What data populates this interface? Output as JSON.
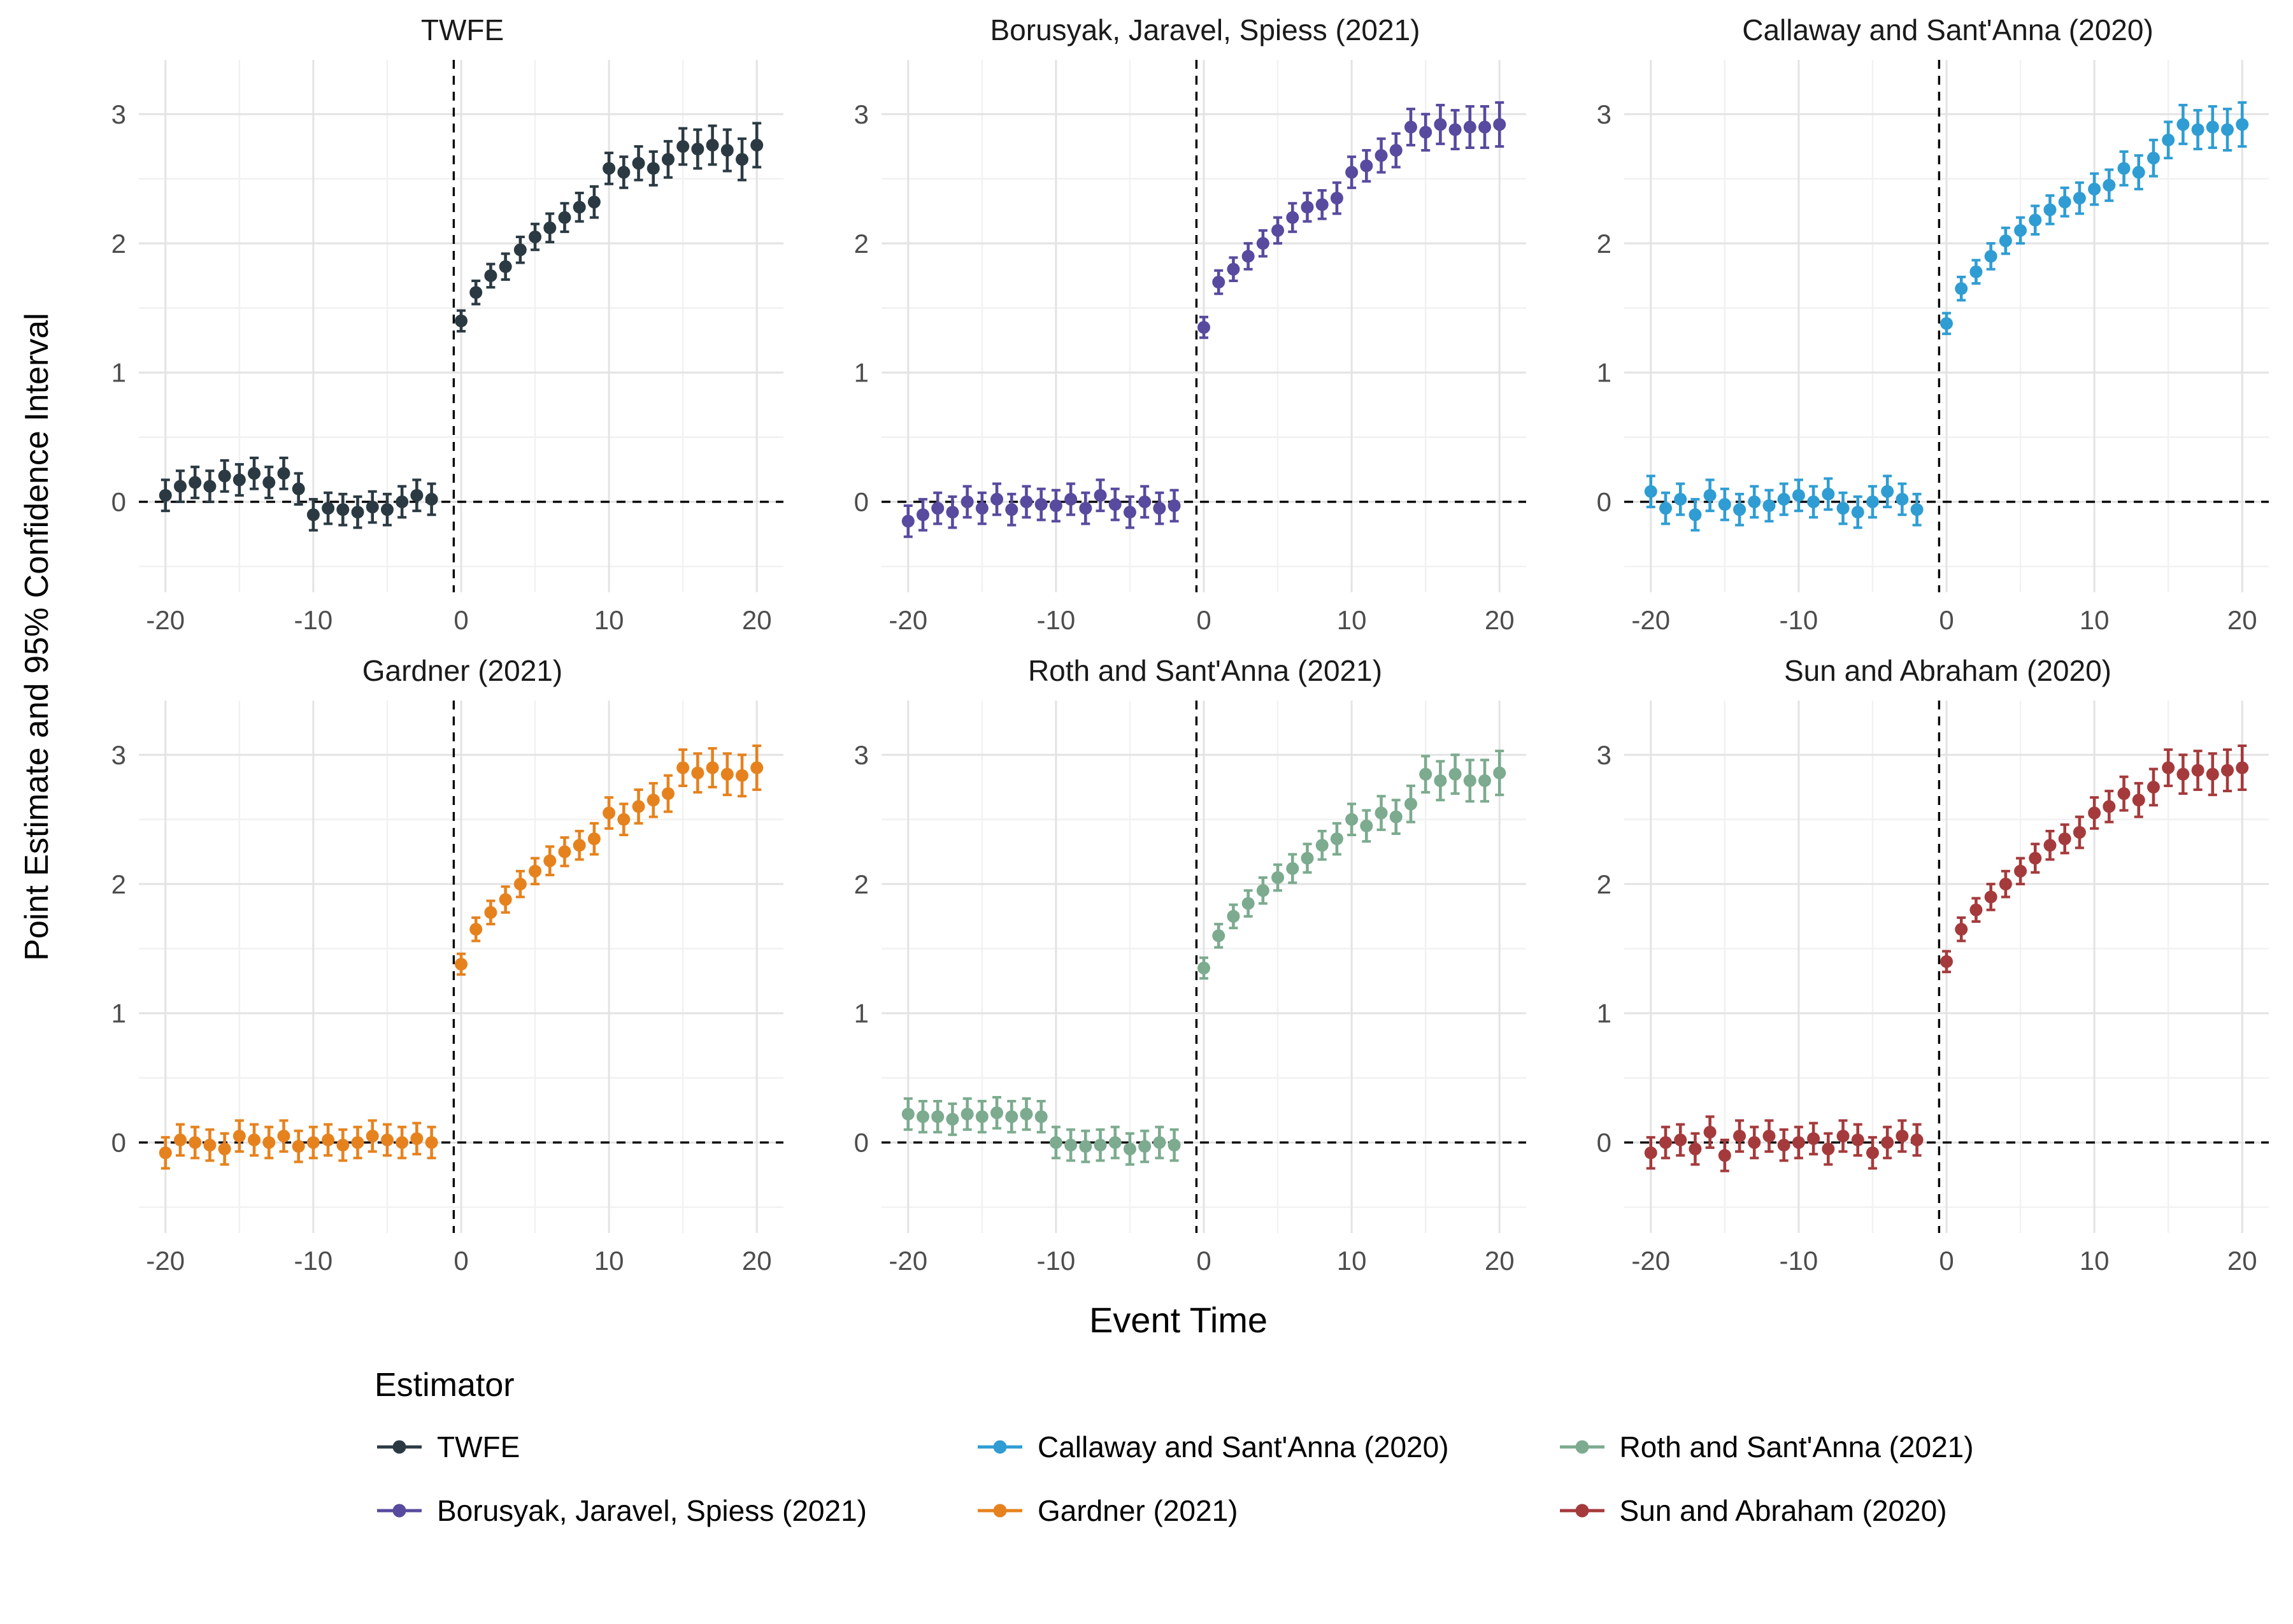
{
  "figure": {
    "ylabel": "Point Estimate and 95% Confidence Interval",
    "xlabel": "Event Time"
  },
  "chart_data": {
    "type": "scatter",
    "subtype": "pointrange-event-study",
    "xlabel": "Event Time",
    "ylabel": "Point Estimate and 95% Confidence Interval",
    "xlim": [
      -21.8,
      21.8
    ],
    "ylim": [
      -0.7,
      3.42
    ],
    "xticks": [
      -20,
      -10,
      0,
      10,
      20
    ],
    "yticks": [
      0,
      1,
      2,
      3
    ],
    "xticks_minor": [
      -15,
      -5,
      5,
      15
    ],
    "yticks_minor": [
      -0.5,
      0.5,
      1.5,
      2.5
    ],
    "vline_dashed_x": -0.5,
    "hline_dashed_y": 0,
    "grid": true,
    "x": [
      -20,
      -19,
      -18,
      -17,
      -16,
      -15,
      -14,
      -13,
      -12,
      -11,
      -10,
      -9,
      -8,
      -7,
      -6,
      -5,
      -4,
      -3,
      -2,
      0,
      1,
      2,
      3,
      4,
      5,
      6,
      7,
      8,
      9,
      10,
      11,
      12,
      13,
      14,
      15,
      16,
      17,
      18,
      19,
      20
    ],
    "ci_halfwidth": [
      0.12,
      0.12,
      0.12,
      0.12,
      0.12,
      0.12,
      0.12,
      0.12,
      0.12,
      0.12,
      0.12,
      0.12,
      0.12,
      0.12,
      0.12,
      0.12,
      0.12,
      0.12,
      0.12,
      0.08,
      0.09,
      0.09,
      0.1,
      0.1,
      0.1,
      0.11,
      0.11,
      0.11,
      0.12,
      0.12,
      0.12,
      0.13,
      0.13,
      0.14,
      0.14,
      0.15,
      0.15,
      0.16,
      0.16,
      0.17
    ],
    "panels": [
      {
        "title": "TWFE",
        "color": "#2b3a42",
        "y": [
          0.05,
          0.12,
          0.15,
          0.12,
          0.2,
          0.17,
          0.22,
          0.15,
          0.22,
          0.1,
          -0.1,
          -0.05,
          -0.06,
          -0.08,
          -0.04,
          -0.06,
          0,
          0.05,
          0.02,
          1.4,
          1.62,
          1.75,
          1.82,
          1.95,
          2.05,
          2.12,
          2.2,
          2.28,
          2.32,
          2.58,
          2.55,
          2.62,
          2.58,
          2.65,
          2.75,
          2.73,
          2.76,
          2.72,
          2.65,
          2.76
        ]
      },
      {
        "title": "Borusyak, Jaravel, Spiess (2021)",
        "color": "#584a9e",
        "y": [
          -0.15,
          -0.1,
          -0.05,
          -0.08,
          0,
          -0.05,
          0.02,
          -0.06,
          0,
          -0.02,
          -0.03,
          0.02,
          -0.05,
          0.05,
          -0.02,
          -0.08,
          0,
          -0.05,
          -0.03,
          1.35,
          1.7,
          1.8,
          1.9,
          2,
          2.1,
          2.2,
          2.28,
          2.3,
          2.35,
          2.55,
          2.6,
          2.68,
          2.72,
          2.9,
          2.86,
          2.92,
          2.88,
          2.9,
          2.9,
          2.92
        ]
      },
      {
        "title": "Callaway and Sant'Anna (2020)",
        "color": "#2f9dd3",
        "y": [
          0.08,
          -0.05,
          0.02,
          -0.1,
          0.05,
          -0.02,
          -0.06,
          0,
          -0.03,
          0.02,
          0.05,
          0,
          0.06,
          -0.05,
          -0.08,
          0,
          0.08,
          0.02,
          -0.06,
          1.38,
          1.65,
          1.78,
          1.9,
          2.02,
          2.1,
          2.18,
          2.26,
          2.32,
          2.35,
          2.42,
          2.45,
          2.58,
          2.55,
          2.66,
          2.8,
          2.92,
          2.88,
          2.9,
          2.88,
          2.92
        ]
      },
      {
        "title": "Gardner (2021)",
        "color": "#e6821e",
        "y": [
          -0.08,
          0.02,
          0,
          -0.02,
          -0.05,
          0.05,
          0.02,
          0,
          0.05,
          -0.03,
          0,
          0.02,
          -0.02,
          0,
          0.05,
          0.02,
          0,
          0.03,
          0,
          1.38,
          1.65,
          1.78,
          1.88,
          2,
          2.1,
          2.18,
          2.25,
          2.3,
          2.35,
          2.55,
          2.5,
          2.6,
          2.65,
          2.7,
          2.9,
          2.86,
          2.9,
          2.85,
          2.84,
          2.9
        ]
      },
      {
        "title": "Roth and Sant'Anna (2021)",
        "color": "#7cab8f",
        "y": [
          0.22,
          0.2,
          0.2,
          0.18,
          0.22,
          0.2,
          0.23,
          0.2,
          0.22,
          0.2,
          0,
          -0.02,
          -0.03,
          -0.02,
          0,
          -0.05,
          -0.03,
          0,
          -0.02,
          1.35,
          1.6,
          1.75,
          1.85,
          1.95,
          2.05,
          2.12,
          2.2,
          2.3,
          2.35,
          2.5,
          2.45,
          2.55,
          2.52,
          2.62,
          2.85,
          2.8,
          2.85,
          2.8,
          2.8,
          2.86
        ]
      },
      {
        "title": "Sun and Abraham (2020)",
        "color": "#a53a3c",
        "y": [
          -0.08,
          0,
          0.02,
          -0.05,
          0.08,
          -0.1,
          0.05,
          0,
          0.05,
          -0.02,
          0,
          0.03,
          -0.05,
          0.05,
          0.02,
          -0.08,
          0,
          0.05,
          0.02,
          1.4,
          1.65,
          1.8,
          1.9,
          2,
          2.1,
          2.2,
          2.3,
          2.35,
          2.4,
          2.55,
          2.6,
          2.7,
          2.65,
          2.75,
          2.9,
          2.85,
          2.88,
          2.85,
          2.88,
          2.9
        ]
      }
    ],
    "legend": {
      "title": "Estimator",
      "entries": [
        {
          "label": "TWFE",
          "color": "#2b3a42"
        },
        {
          "label": "Borusyak, Jaravel, Spiess (2021)",
          "color": "#584a9e"
        },
        {
          "label": "Callaway and Sant'Anna (2020)",
          "color": "#2f9dd3"
        },
        {
          "label": "Gardner (2021)",
          "color": "#e6821e"
        },
        {
          "label": "Roth and Sant'Anna (2021)",
          "color": "#7cab8f"
        },
        {
          "label": "Sun and Abraham (2020)",
          "color": "#a53a3c"
        }
      ]
    }
  }
}
